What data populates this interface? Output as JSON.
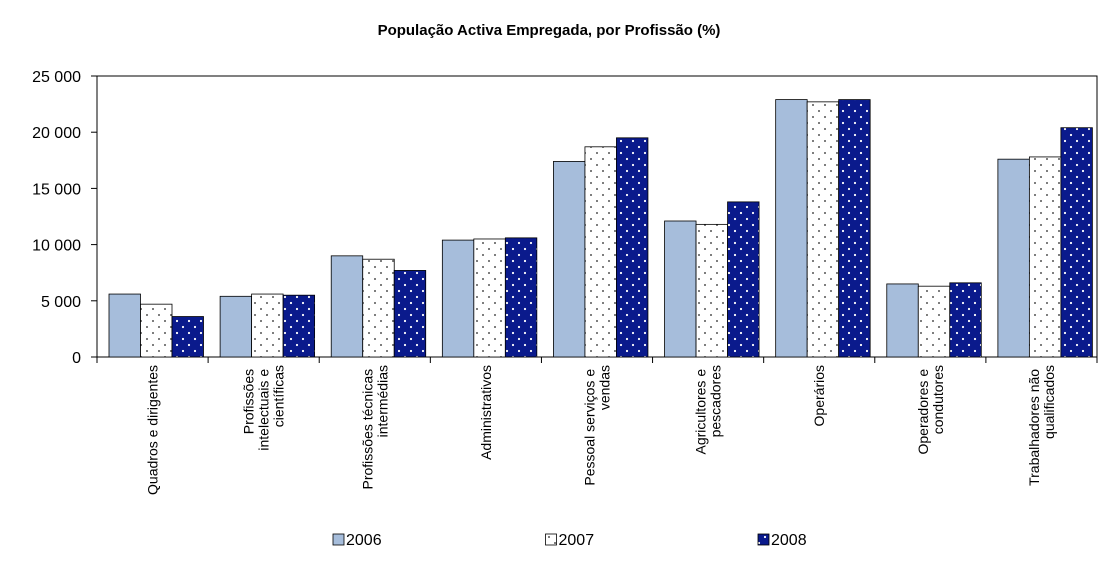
{
  "chart_data": {
    "type": "bar",
    "title": "População Activa Empregada, por Profissão (%)",
    "categories": [
      "Quadros e dirigentes",
      "Profissões intelectuais e científicas",
      "Profissões técnicas intermédias",
      "Administrativos",
      "Pessoal serviços e vendas",
      "Agricultores e pescadores",
      "Operários",
      "Operadores e condutores",
      "Trabalhadores não qualificados"
    ],
    "series": [
      {
        "name": "2006",
        "color": "#a6bddb",
        "values": [
          5600,
          5400,
          9000,
          10400,
          17400,
          12100,
          22900,
          6500,
          17600
        ]
      },
      {
        "name": "2007",
        "color": "#ffffff",
        "values": [
          4700,
          5600,
          8700,
          10500,
          18700,
          11800,
          22700,
          6300,
          17800
        ]
      },
      {
        "name": "2008",
        "color": "#0a1a8c",
        "values": [
          3600,
          5500,
          7700,
          10600,
          19500,
          13800,
          22900,
          6600,
          20400
        ]
      }
    ],
    "ylim": [
      0,
      25000
    ],
    "yticks": [
      {
        "value": 0,
        "label": "0"
      },
      {
        "value": 5000,
        "label": "5 000"
      },
      {
        "value": 10000,
        "label": "10 000"
      },
      {
        "value": 15000,
        "label": "15 000"
      },
      {
        "value": 20000,
        "label": "20 000"
      },
      {
        "value": 25000,
        "label": "25 000"
      }
    ],
    "grid": false
  }
}
